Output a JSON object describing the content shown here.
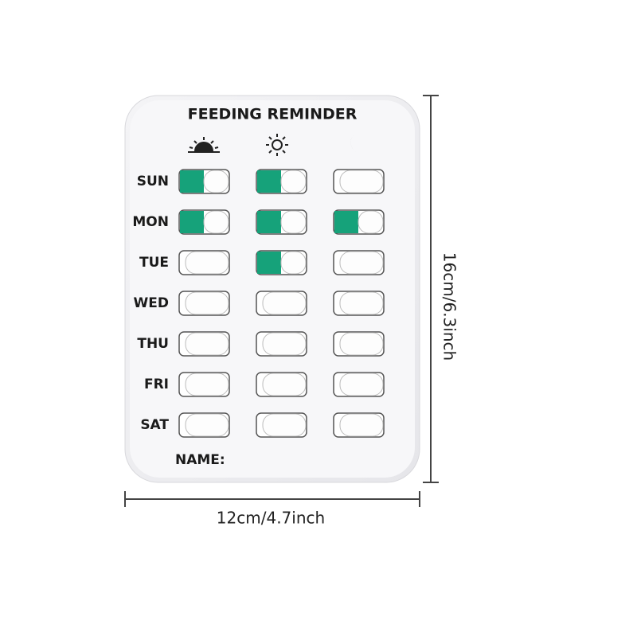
{
  "card": {
    "title": "FEEDING REMINDER",
    "name_label": "NAME:",
    "rows": [
      {
        "day": "SUN",
        "states": [
          true,
          true,
          false
        ]
      },
      {
        "day": "MON",
        "states": [
          true,
          true,
          true
        ]
      },
      {
        "day": "TUE",
        "states": [
          false,
          true,
          false
        ]
      },
      {
        "day": "WED",
        "states": [
          false,
          false,
          false
        ]
      },
      {
        "day": "THU",
        "states": [
          false,
          false,
          false
        ]
      },
      {
        "day": "FRI",
        "states": [
          false,
          false,
          false
        ]
      },
      {
        "day": "SAT",
        "states": [
          false,
          false,
          false
        ]
      }
    ]
  },
  "dimensions": {
    "height": "16cm/6.3inch",
    "width": "12cm/4.7inch"
  }
}
